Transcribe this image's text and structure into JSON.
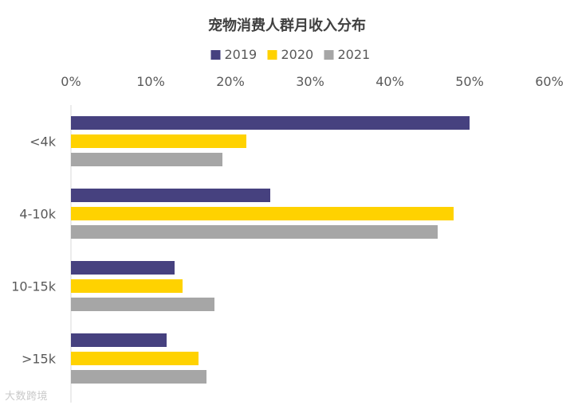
{
  "chart_data": {
    "type": "bar",
    "orientation": "horizontal",
    "title": "宠物消费人群月收入分布",
    "xlabel": "",
    "ylabel": "",
    "categories": [
      "<4k",
      "4-10k",
      "10-15k",
      ">15k"
    ],
    "series": [
      {
        "name": "2019",
        "color": "#46417f",
        "values": [
          50,
          25,
          13,
          12
        ]
      },
      {
        "name": "2020",
        "color": "#ffd200",
        "values": [
          22,
          48,
          14,
          16
        ]
      },
      {
        "name": "2021",
        "color": "#a6a6a6",
        "values": [
          19,
          46,
          18,
          17
        ]
      }
    ],
    "xlim": [
      0,
      60
    ],
    "xticks": [
      0,
      10,
      20,
      30,
      40,
      50,
      60
    ],
    "tick_suffix": "%",
    "axis_position": "top",
    "legend_position": "top",
    "grid": false
  },
  "watermark": "大数跨境"
}
